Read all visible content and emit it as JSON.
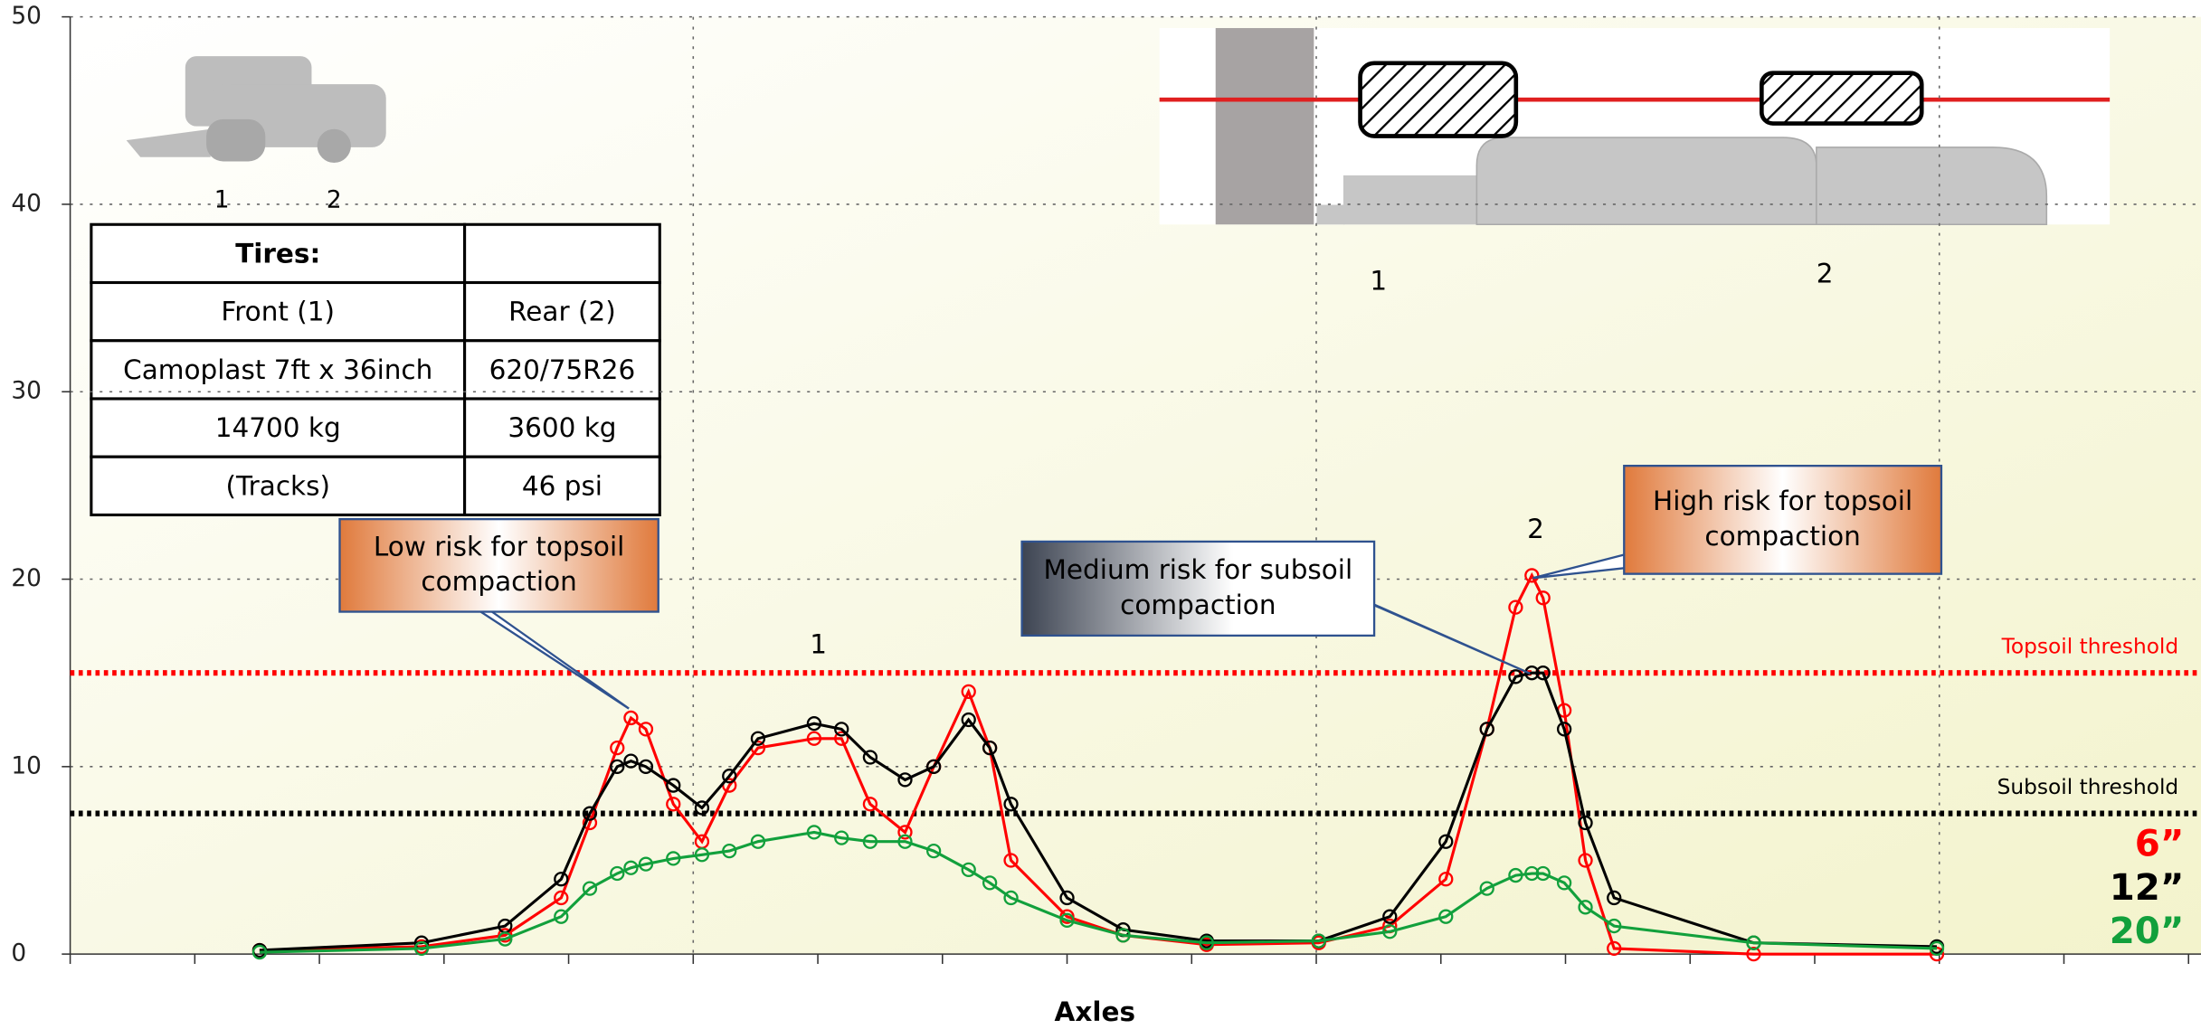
{
  "chart_data": {
    "type": "line",
    "x_label": "Axles",
    "x": [
      1.52,
      2.82,
      3.49,
      3.94,
      4.17,
      4.39,
      4.5,
      4.62,
      4.84,
      5.07,
      5.29,
      5.52,
      5.97,
      6.19,
      6.42,
      6.7,
      6.93,
      7.21,
      7.38,
      7.55,
      8.0,
      8.45,
      9.12,
      10.02,
      10.59,
      11.04,
      11.37,
      11.6,
      11.73,
      11.82,
      11.99,
      12.16,
      12.39,
      13.51,
      14.98
    ],
    "xlim": [
      0,
      17.1
    ],
    "xticks": [
      0,
      1,
      2,
      3,
      4,
      5,
      6,
      7,
      8,
      9,
      10,
      11,
      12,
      13,
      14,
      15,
      16,
      17
    ],
    "ylim": [
      0,
      50
    ],
    "yticks": [
      0,
      10,
      20,
      30,
      40,
      50
    ],
    "grid": true,
    "series": [
      {
        "name": "6”",
        "color": "#ff0000",
        "values": [
          0.2,
          0.4,
          1.0,
          3,
          7,
          11,
          12.6,
          12,
          8,
          6,
          9,
          11,
          11.5,
          11.5,
          8,
          6.5,
          10,
          14,
          11,
          5,
          2,
          1,
          0.5,
          0.6,
          1.5,
          4,
          12,
          18.5,
          20.2,
          19,
          13,
          5,
          0.3,
          0,
          0
        ]
      },
      {
        "name": "12”",
        "color": "#000000",
        "values": [
          0.2,
          0.6,
          1.5,
          4,
          7.5,
          10,
          10.3,
          10,
          9,
          7.8,
          9.5,
          11.5,
          12.3,
          12,
          10.5,
          9.3,
          10,
          12.5,
          11,
          8,
          3,
          1.3,
          0.7,
          0.7,
          2,
          6,
          12,
          14.8,
          15,
          15,
          12,
          7,
          3,
          0.6,
          0.4
        ]
      },
      {
        "name": "20”",
        "color": "#12a03c",
        "values": [
          0.1,
          0.3,
          0.8,
          2,
          3.5,
          4.3,
          4.6,
          4.8,
          5.1,
          5.3,
          5.5,
          6,
          6.5,
          6.2,
          6,
          6,
          5.5,
          4.5,
          3.8,
          3,
          1.8,
          1,
          0.6,
          0.7,
          1.2,
          2,
          3.5,
          4.2,
          4.3,
          4.3,
          3.8,
          2.5,
          1.5,
          0.6,
          0.3
        ]
      }
    ],
    "thresholds": [
      {
        "label": "Topsoil threshold",
        "value": 15,
        "color": "#ff0000"
      },
      {
        "label": "Subsoil threshold",
        "value": 7.5,
        "color": "#000000"
      }
    ],
    "peak_labels": [
      "1",
      "2"
    ],
    "annotations": [
      {
        "lines": [
          "Low risk for topsoil",
          "compaction"
        ]
      },
      {
        "lines": [
          "Medium risk for subsoil",
          "compaction"
        ]
      },
      {
        "lines": [
          "High risk for topsoil",
          "compaction"
        ]
      }
    ]
  },
  "table": {
    "rows": [
      [
        "Tires:"
      ],
      [
        "Front (1)",
        "Rear (2)"
      ],
      [
        "Camoplast 7ft x 36inch",
        "620/75R26"
      ],
      [
        "14700 kg",
        "3600 kg"
      ],
      [
        "(Tracks)",
        "46 psi"
      ]
    ]
  },
  "vehicle_icon": {
    "labels": [
      "1",
      "2"
    ]
  },
  "axle_diagram": {
    "labels": [
      "1",
      "2"
    ]
  }
}
